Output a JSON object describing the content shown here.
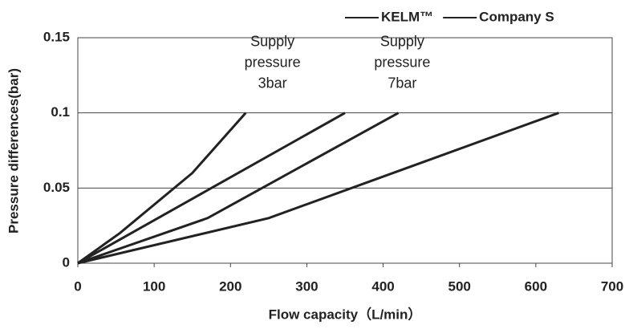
{
  "chart_data": {
    "type": "line",
    "xlabel": "Flow capacity（L/min）",
    "ylabel": "Pressure differences(bar)",
    "legend": [
      "KELM™",
      "Company S"
    ],
    "legend_position": "top-right",
    "annotations": [
      {
        "lines": [
          "Supply",
          "pressure",
          "3bar"
        ],
        "x": 255,
        "y": 0.133
      },
      {
        "lines": [
          "Supply",
          "pressure",
          "7bar"
        ],
        "x": 425,
        "y": 0.133
      }
    ],
    "series": [
      {
        "color": "#222222",
        "x": [
          0,
          55,
          150,
          220
        ],
        "values": [
          0,
          0.02,
          0.06,
          0.1
        ]
      },
      {
        "color": "#222222",
        "x": [
          0,
          175,
          350
        ],
        "values": [
          0,
          0.05,
          0.1
        ]
      },
      {
        "color": "#222222",
        "x": [
          0,
          170,
          420
        ],
        "values": [
          0,
          0.03,
          0.1
        ]
      },
      {
        "color": "#222222",
        "x": [
          0,
          250,
          630
        ],
        "values": [
          0,
          0.03,
          0.1
        ]
      }
    ],
    "xlim": [
      0,
      700
    ],
    "xticks": [
      0,
      100,
      200,
      300,
      400,
      500,
      600,
      700
    ],
    "ylim": [
      0,
      0.15
    ],
    "yticks": [
      0,
      0.05,
      0.1,
      0.15
    ],
    "grid": true
  }
}
